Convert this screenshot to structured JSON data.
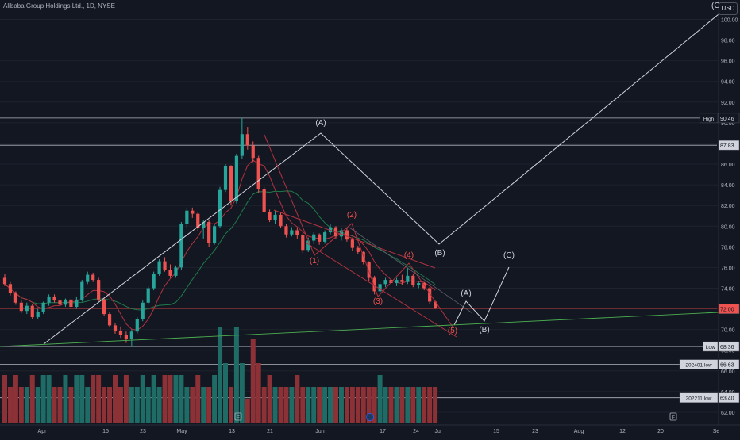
{
  "header": {
    "title": "Alibaba Group Holdings Ltd., 1D, NYSE",
    "currency": "USD",
    "corner_label": "(C"
  },
  "colors": {
    "up": "#26a69a",
    "down": "#ef5350",
    "vol_up": "#1f6b66",
    "vol_down": "#8c3136",
    "wave_white": "#d1d4dc",
    "wave_red": "#ef5350",
    "wave_green": "#4caf50",
    "bg": "#131722"
  },
  "chart_data": {
    "type": "candlestick",
    "title": "Alibaba Group Holdings Ltd., 1D, NYSE",
    "y_axis": {
      "ticks": [
        62.0,
        64.0,
        66.0,
        68.0,
        70.0,
        72.0,
        74.0,
        76.0,
        78.0,
        80.0,
        82.0,
        84.0,
        86.0,
        88.0,
        90.0,
        92.0,
        94.0,
        96.0,
        98.0,
        100.0
      ]
    },
    "x_axis": {
      "ticks": [
        "Apr",
        "15",
        "23",
        "May",
        "13",
        "21",
        "Jun",
        "17",
        "24",
        "Jul",
        "15",
        "23",
        "Aug",
        "12",
        "20",
        "Se"
      ]
    },
    "price_labels": [
      {
        "text": "90.46",
        "tag": "High",
        "value": 90.46,
        "color": "#131722",
        "style": "dark"
      },
      {
        "text": "87.83",
        "tag": "",
        "value": 87.83,
        "style": "light"
      },
      {
        "text": "72.00",
        "tag": "",
        "value": 72.0,
        "style": "red"
      },
      {
        "text": "68.36",
        "tag": "Low",
        "value": 68.36,
        "style": "light"
      },
      {
        "text": "66.63",
        "tag": "202401 low",
        "value": 66.63,
        "style": "light"
      },
      {
        "text": "63.40",
        "tag": "202211 low",
        "value": 63.4,
        "style": "light"
      }
    ],
    "candles": [
      {
        "o": 75.0,
        "h": 75.4,
        "l": 74.2,
        "c": 74.4
      },
      {
        "o": 74.4,
        "h": 74.6,
        "l": 73.3,
        "c": 73.5
      },
      {
        "o": 73.5,
        "h": 73.7,
        "l": 72.4,
        "c": 72.6
      },
      {
        "o": 72.6,
        "h": 72.9,
        "l": 71.6,
        "c": 71.8
      },
      {
        "o": 71.8,
        "h": 72.6,
        "l": 71.5,
        "c": 72.3
      },
      {
        "o": 72.3,
        "h": 72.5,
        "l": 71.0,
        "c": 71.2
      },
      {
        "o": 71.2,
        "h": 72.0,
        "l": 71.0,
        "c": 71.7
      },
      {
        "o": 71.7,
        "h": 72.7,
        "l": 71.5,
        "c": 72.6
      },
      {
        "o": 72.6,
        "h": 73.4,
        "l": 72.3,
        "c": 73.2
      },
      {
        "o": 73.2,
        "h": 73.4,
        "l": 72.6,
        "c": 72.8
      },
      {
        "o": 72.8,
        "h": 73.0,
        "l": 72.2,
        "c": 72.4
      },
      {
        "o": 72.4,
        "h": 73.0,
        "l": 72.2,
        "c": 72.9
      },
      {
        "o": 72.9,
        "h": 73.0,
        "l": 72.0,
        "c": 72.2
      },
      {
        "o": 72.2,
        "h": 73.2,
        "l": 72.0,
        "c": 72.9
      },
      {
        "o": 72.9,
        "h": 74.8,
        "l": 72.7,
        "c": 74.6
      },
      {
        "o": 74.6,
        "h": 75.6,
        "l": 74.4,
        "c": 75.3
      },
      {
        "o": 75.3,
        "h": 75.5,
        "l": 74.6,
        "c": 74.8
      },
      {
        "o": 74.8,
        "h": 75.0,
        "l": 72.7,
        "c": 72.9
      },
      {
        "o": 72.9,
        "h": 73.1,
        "l": 71.3,
        "c": 71.5
      },
      {
        "o": 71.5,
        "h": 71.7,
        "l": 70.2,
        "c": 70.4
      },
      {
        "o": 70.4,
        "h": 70.6,
        "l": 69.6,
        "c": 69.9
      },
      {
        "o": 69.9,
        "h": 70.3,
        "l": 69.2,
        "c": 69.5
      },
      {
        "o": 69.5,
        "h": 69.8,
        "l": 68.7,
        "c": 69.1
      },
      {
        "o": 69.1,
        "h": 70.0,
        "l": 68.4,
        "c": 69.8
      },
      {
        "o": 69.8,
        "h": 71.2,
        "l": 69.6,
        "c": 71.0
      },
      {
        "o": 71.0,
        "h": 72.8,
        "l": 70.8,
        "c": 72.6
      },
      {
        "o": 72.6,
        "h": 74.2,
        "l": 72.4,
        "c": 74.0
      },
      {
        "o": 74.0,
        "h": 75.6,
        "l": 73.8,
        "c": 75.4
      },
      {
        "o": 75.4,
        "h": 76.8,
        "l": 75.2,
        "c": 76.6
      },
      {
        "o": 76.6,
        "h": 77.0,
        "l": 75.6,
        "c": 75.8
      },
      {
        "o": 75.8,
        "h": 76.3,
        "l": 75.0,
        "c": 75.2
      },
      {
        "o": 75.2,
        "h": 76.2,
        "l": 75.0,
        "c": 76.0
      },
      {
        "o": 76.0,
        "h": 80.4,
        "l": 75.8,
        "c": 80.2
      },
      {
        "o": 80.2,
        "h": 81.8,
        "l": 79.8,
        "c": 81.5
      },
      {
        "o": 81.5,
        "h": 81.8,
        "l": 80.8,
        "c": 81.2
      },
      {
        "o": 81.2,
        "h": 81.4,
        "l": 79.5,
        "c": 79.8
      },
      {
        "o": 79.8,
        "h": 80.6,
        "l": 78.8,
        "c": 80.4
      },
      {
        "o": 80.4,
        "h": 80.6,
        "l": 78.0,
        "c": 78.4
      },
      {
        "o": 78.4,
        "h": 80.2,
        "l": 78.2,
        "c": 80.0
      },
      {
        "o": 80.0,
        "h": 83.8,
        "l": 79.8,
        "c": 83.5
      },
      {
        "o": 83.5,
        "h": 86.0,
        "l": 83.3,
        "c": 85.8
      },
      {
        "o": 85.8,
        "h": 85.9,
        "l": 82.0,
        "c": 82.4
      },
      {
        "o": 82.4,
        "h": 87.0,
        "l": 82.2,
        "c": 86.8
      },
      {
        "o": 86.8,
        "h": 90.46,
        "l": 86.5,
        "c": 88.9
      },
      {
        "o": 88.9,
        "h": 89.6,
        "l": 87.4,
        "c": 87.8
      },
      {
        "o": 87.8,
        "h": 88.2,
        "l": 86.2,
        "c": 86.6
      },
      {
        "o": 86.6,
        "h": 86.8,
        "l": 83.2,
        "c": 83.6
      },
      {
        "o": 83.6,
        "h": 83.8,
        "l": 81.3,
        "c": 81.4
      },
      {
        "o": 81.4,
        "h": 81.6,
        "l": 80.4,
        "c": 80.6
      },
      {
        "o": 80.6,
        "h": 81.5,
        "l": 80.2,
        "c": 81.1
      },
      {
        "o": 81.1,
        "h": 81.3,
        "l": 79.8,
        "c": 80.0
      },
      {
        "o": 80.0,
        "h": 80.2,
        "l": 78.9,
        "c": 79.2
      },
      {
        "o": 79.2,
        "h": 79.9,
        "l": 79.0,
        "c": 79.6
      },
      {
        "o": 79.6,
        "h": 79.8,
        "l": 78.8,
        "c": 79.1
      },
      {
        "o": 79.1,
        "h": 79.3,
        "l": 77.4,
        "c": 77.7
      },
      {
        "o": 77.7,
        "h": 78.9,
        "l": 77.5,
        "c": 78.6
      },
      {
        "o": 78.6,
        "h": 79.4,
        "l": 78.3,
        "c": 79.2
      },
      {
        "o": 79.2,
        "h": 79.3,
        "l": 78.2,
        "c": 78.5
      },
      {
        "o": 78.5,
        "h": 79.6,
        "l": 78.3,
        "c": 79.4
      },
      {
        "o": 79.4,
        "h": 80.2,
        "l": 79.2,
        "c": 79.9
      },
      {
        "o": 79.9,
        "h": 80.0,
        "l": 78.8,
        "c": 79.0
      },
      {
        "o": 79.0,
        "h": 79.8,
        "l": 78.6,
        "c": 79.6
      },
      {
        "o": 79.6,
        "h": 79.8,
        "l": 78.5,
        "c": 78.7
      },
      {
        "o": 78.7,
        "h": 78.9,
        "l": 77.6,
        "c": 77.9
      },
      {
        "o": 77.9,
        "h": 78.1,
        "l": 77.3,
        "c": 77.5
      },
      {
        "o": 77.5,
        "h": 77.6,
        "l": 76.3,
        "c": 76.5
      },
      {
        "o": 76.5,
        "h": 76.6,
        "l": 74.7,
        "c": 75.0
      },
      {
        "o": 75.0,
        "h": 75.2,
        "l": 73.4,
        "c": 73.7
      },
      {
        "o": 73.7,
        "h": 74.6,
        "l": 73.4,
        "c": 74.4
      },
      {
        "o": 74.4,
        "h": 75.0,
        "l": 74.1,
        "c": 74.8
      },
      {
        "o": 74.8,
        "h": 75.1,
        "l": 74.3,
        "c": 74.5
      },
      {
        "o": 74.5,
        "h": 75.0,
        "l": 74.2,
        "c": 74.8
      },
      {
        "o": 74.8,
        "h": 75.3,
        "l": 74.3,
        "c": 74.6
      },
      {
        "o": 74.6,
        "h": 76.0,
        "l": 74.4,
        "c": 75.2
      },
      {
        "o": 75.2,
        "h": 75.4,
        "l": 74.1,
        "c": 74.3
      },
      {
        "o": 74.3,
        "h": 74.7,
        "l": 74.0,
        "c": 74.5
      },
      {
        "o": 74.5,
        "h": 74.6,
        "l": 73.8,
        "c": 74.0
      },
      {
        "o": 74.0,
        "h": 74.1,
        "l": 72.5,
        "c": 72.7
      },
      {
        "o": 72.7,
        "h": 72.8,
        "l": 72.0,
        "c": 72.1
      }
    ],
    "volume": [
      4,
      3,
      4,
      3,
      3,
      4,
      3,
      4,
      4,
      3,
      3,
      4,
      3,
      4,
      4,
      3,
      4,
      4,
      3,
      3,
      4,
      3,
      4,
      3,
      3,
      4,
      3,
      4,
      3,
      4,
      4,
      4,
      4,
      3,
      3,
      4,
      3,
      3,
      4,
      8,
      5,
      3,
      8,
      5,
      2,
      7,
      5,
      3,
      4,
      3,
      3,
      3,
      3,
      4,
      3,
      3,
      3,
      3,
      3,
      3,
      3,
      3,
      3,
      3,
      3,
      3,
      3,
      3,
      4,
      3,
      3,
      3,
      3,
      3,
      3,
      3,
      3,
      3,
      3
    ],
    "annotations_white": [
      {
        "text": "(A)",
        "x": 404,
        "y": 158
      },
      {
        "text": "(B)",
        "x": 554,
        "y": 322
      },
      {
        "text": "(C)",
        "x": 641,
        "y": 325
      },
      {
        "text": "(A)",
        "x": 587,
        "y": 373
      },
      {
        "text": "(B)",
        "x": 610,
        "y": 419
      }
    ],
    "annotations_red": [
      {
        "text": "(1)",
        "x": 396,
        "y": 332
      },
      {
        "text": "(2)",
        "x": 443,
        "y": 274
      },
      {
        "text": "(3)",
        "x": 476,
        "y": 383
      },
      {
        "text": "(4)",
        "x": 515,
        "y": 325
      },
      {
        "text": "(5)",
        "x": 570,
        "y": 420
      }
    ],
    "events": [
      {
        "text": "E"
      },
      {
        "text": "E"
      }
    ]
  }
}
